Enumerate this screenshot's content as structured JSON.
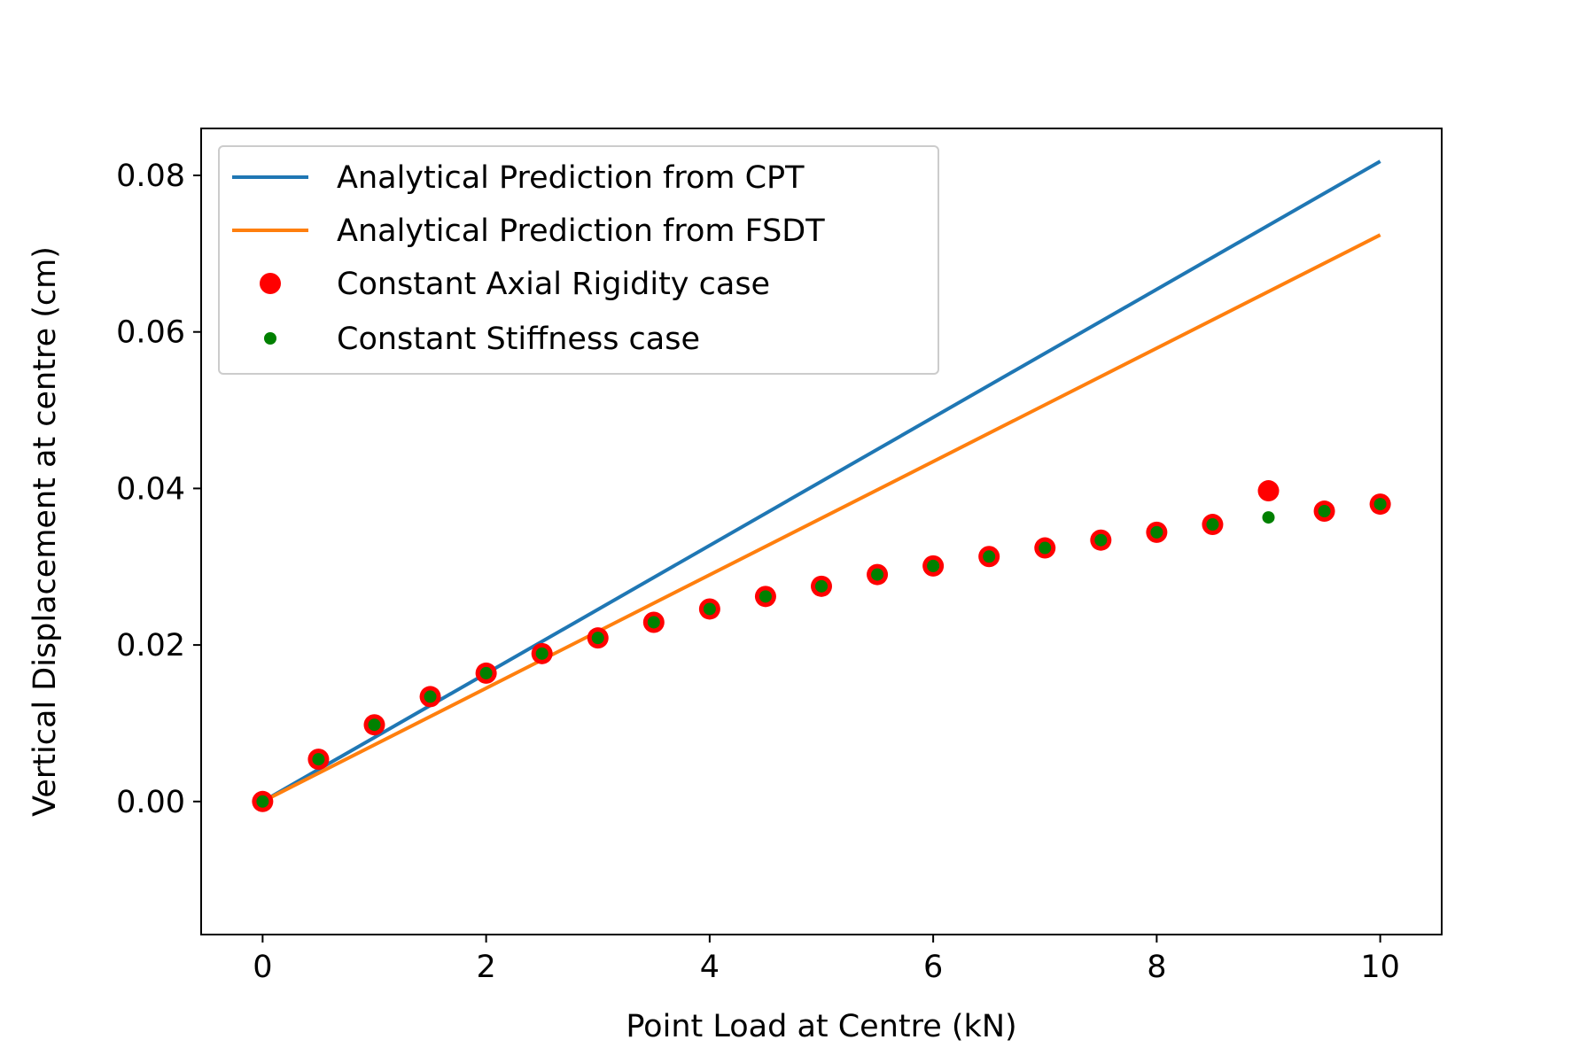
{
  "chart_data": {
    "type": "line",
    "title": "",
    "xlabel": "Point Load at Centre (kN)",
    "ylabel": "Vertical Displacement at centre (cm)",
    "xlim": [
      -0.55,
      10.55
    ],
    "ylim": [
      -0.017,
      0.086
    ],
    "x_ticks": [
      0,
      2,
      4,
      6,
      8,
      10
    ],
    "x_tick_labels": [
      "0",
      "2",
      "4",
      "6",
      "8",
      "10"
    ],
    "y_ticks": [
      0.0,
      0.02,
      0.04,
      0.06,
      0.08
    ],
    "y_tick_labels": [
      "0.00",
      "0.02",
      "0.04",
      "0.06",
      "0.08"
    ],
    "grid": false,
    "legend_position": "top-left",
    "series": [
      {
        "name": "Analytical Prediction from CPT",
        "kind": "line",
        "color": "#1f77b4",
        "x": [
          0,
          10
        ],
        "y": [
          0.0,
          0.0818
        ]
      },
      {
        "name": "Analytical Prediction from FSDT",
        "kind": "line",
        "color": "#ff7f0e",
        "x": [
          0,
          10
        ],
        "y": [
          0.0,
          0.0724
        ]
      },
      {
        "name": "Constant Axial Rigidity case",
        "kind": "scatter",
        "color": "#ff0000",
        "marker": "large",
        "x": [
          0,
          0.5,
          1,
          1.5,
          2,
          2.5,
          3,
          3.5,
          4,
          4.5,
          5,
          5.5,
          6,
          6.5,
          7,
          7.5,
          8,
          8.5,
          9,
          9.5,
          10
        ],
        "y": [
          0.0,
          0.0054,
          0.0098,
          0.0134,
          0.0164,
          0.0189,
          0.0209,
          0.0229,
          0.0246,
          0.0262,
          0.0275,
          0.029,
          0.0301,
          0.0313,
          0.0324,
          0.0334,
          0.0344,
          0.0354,
          0.0397,
          0.0371,
          0.038
        ]
      },
      {
        "name": "Constant Stiffness case",
        "kind": "scatter",
        "color": "#008000",
        "marker": "small",
        "x": [
          0,
          0.5,
          1,
          1.5,
          2,
          2.5,
          3,
          3.5,
          4,
          4.5,
          5,
          5.5,
          6,
          6.5,
          7,
          7.5,
          8,
          8.5,
          9,
          9.5,
          10
        ],
        "y": [
          0.0,
          0.0054,
          0.0098,
          0.0134,
          0.0164,
          0.0189,
          0.0209,
          0.0229,
          0.0246,
          0.0262,
          0.0275,
          0.029,
          0.0301,
          0.0313,
          0.0324,
          0.0334,
          0.0344,
          0.0354,
          0.0363,
          0.0371,
          0.038
        ]
      }
    ]
  }
}
